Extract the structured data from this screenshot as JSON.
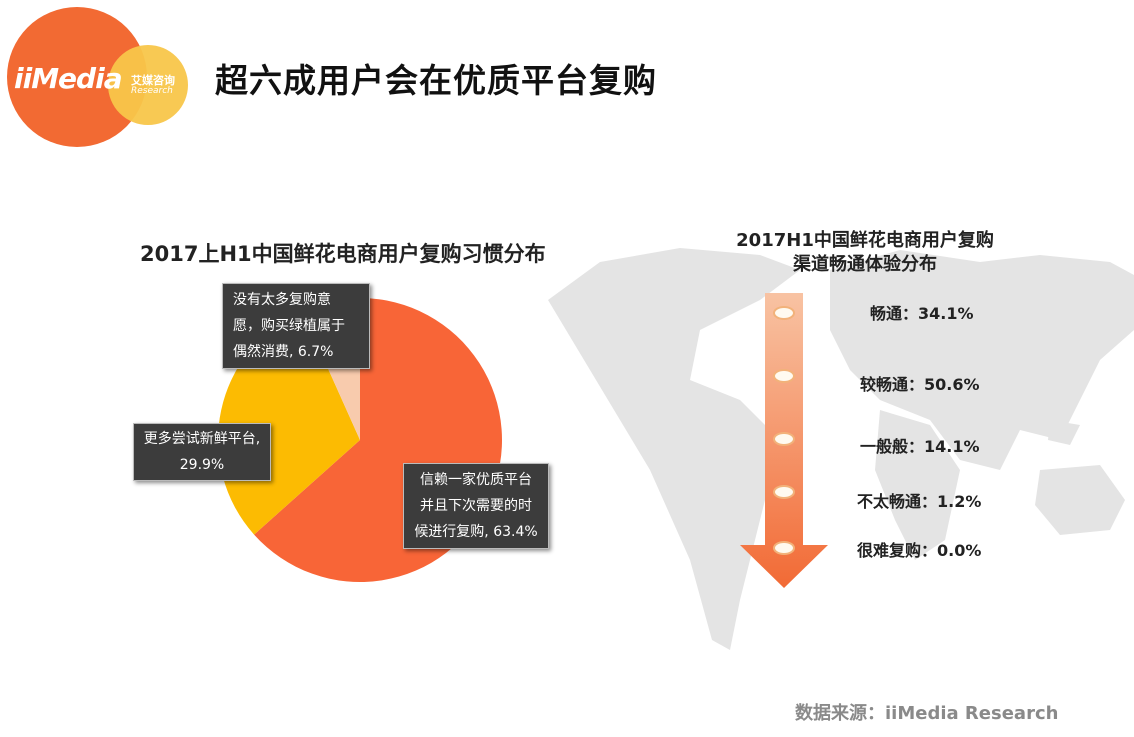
{
  "page": {
    "title": "超六成用户会在优质平台复购"
  },
  "logo": {
    "brand": "iiMedia",
    "cn": "艾媒咨询",
    "en": "Research"
  },
  "colors": {
    "orange": "#f86537",
    "yellow": "#fcbb02",
    "peach": "#f8cbad",
    "box": "#3c3c3c"
  },
  "chart_data": [
    {
      "type": "pie",
      "title": "2017上H1中国鲜花电商用户复购习惯分布",
      "slices": [
        {
          "label": "信赖一家优质平台并且下次需要的时候进行复购",
          "value": 63.4,
          "value_label": "63.4%",
          "color": "#f86537",
          "box_lines": "信赖一家优质平台\n并且下次需要的时\n候进行复购, 63.4%"
        },
        {
          "label": "更多尝试新鲜平台",
          "value": 29.9,
          "value_label": "29.9%",
          "color": "#fcbb02",
          "box_lines": "更多尝试新鲜平台,\n29.9%"
        },
        {
          "label": "没有太多复购意愿，购买绿植属于偶然消费",
          "value": 6.7,
          "value_label": "6.7%",
          "color": "#f8cbad",
          "box_lines": "没有太多复购意\n愿，购买绿植属于\n偶然消费, 6.7%"
        }
      ]
    },
    {
      "type": "table",
      "title": "2017H1中国鲜花电商用户复购渠道畅通体验分布",
      "title_lines": [
        "2017H1中国鲜花电商用户复购",
        "渠道畅通体验分布"
      ],
      "items": [
        {
          "label": "畅通",
          "value": 34.1,
          "text": "畅通：34.1%"
        },
        {
          "label": "较畅通",
          "value": 50.6,
          "text": "较畅通：50.6%"
        },
        {
          "label": "一般般",
          "value": 14.1,
          "text": "一般般：14.1%"
        },
        {
          "label": "不太畅通",
          "value": 1.2,
          "text": "不太畅通：1.2%"
        },
        {
          "label": "很难复购",
          "value": 0.0,
          "text": "很难复购：0.0%"
        }
      ]
    }
  ],
  "source": "数据来源：iiMedia Research"
}
